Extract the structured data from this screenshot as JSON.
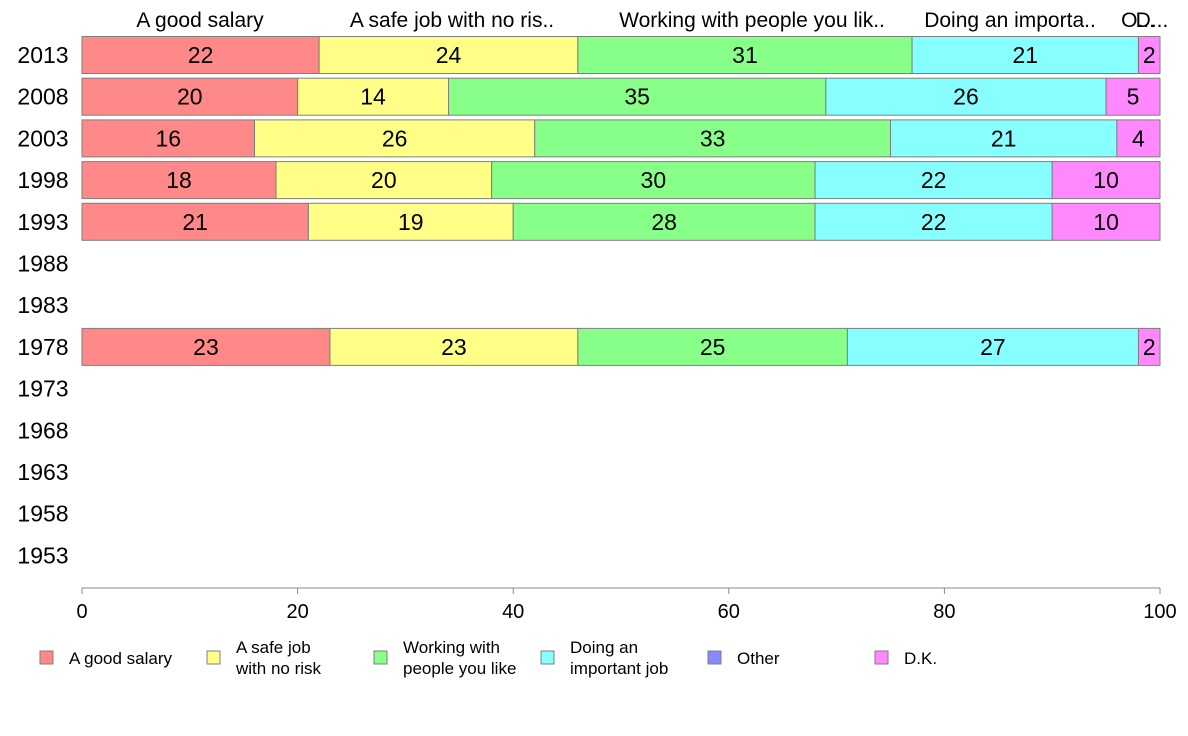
{
  "chart_data": {
    "type": "bar",
    "orientation": "horizontal",
    "stacked": true,
    "categories": [
      "2013",
      "2008",
      "2003",
      "1998",
      "1993",
      "1988",
      "1983",
      "1978",
      "1973",
      "1968",
      "1963",
      "1958",
      "1953"
    ],
    "series": [
      {
        "name": "A good salary",
        "color": "#ff8888",
        "values": [
          22,
          20,
          16,
          18,
          21,
          null,
          null,
          23,
          null,
          null,
          null,
          null,
          null
        ]
      },
      {
        "name": "A safe job with no risk",
        "color": "#ffff88",
        "values": [
          24,
          14,
          26,
          20,
          19,
          null,
          null,
          23,
          null,
          null,
          null,
          null,
          null
        ]
      },
      {
        "name": "Working with people you like",
        "color": "#88ff88",
        "values": [
          31,
          35,
          33,
          30,
          28,
          null,
          null,
          25,
          null,
          null,
          null,
          null,
          null
        ]
      },
      {
        "name": "Doing an important job",
        "color": "#88ffff",
        "values": [
          21,
          26,
          21,
          22,
          22,
          null,
          null,
          27,
          null,
          null,
          null,
          null,
          null
        ]
      },
      {
        "name": "Other",
        "color": "#8888ff",
        "values": [
          0,
          0,
          0,
          0,
          0,
          null,
          null,
          0,
          null,
          null,
          null,
          null,
          null
        ]
      },
      {
        "name": "D.K.",
        "color": "#ff88ff",
        "values": [
          2,
          5,
          4,
          10,
          10,
          null,
          null,
          2,
          null,
          null,
          null,
          null,
          null
        ]
      }
    ],
    "column_labels": [
      "A good salary",
      "A safe job with no ris..",
      "Working with people you lik..",
      "Doing an importa..",
      "O...",
      "D..."
    ],
    "legend_labels": [
      [
        "A good salary"
      ],
      [
        "A safe job",
        "with no risk"
      ],
      [
        "Working with",
        "people you like"
      ],
      [
        "Doing an",
        "important job"
      ],
      [
        "Other"
      ],
      [
        "D.K."
      ]
    ],
    "xlim": [
      0,
      100
    ],
    "xticks": [
      0,
      20,
      40,
      60,
      80,
      100
    ],
    "grid": false,
    "legend_position": "bottom"
  }
}
